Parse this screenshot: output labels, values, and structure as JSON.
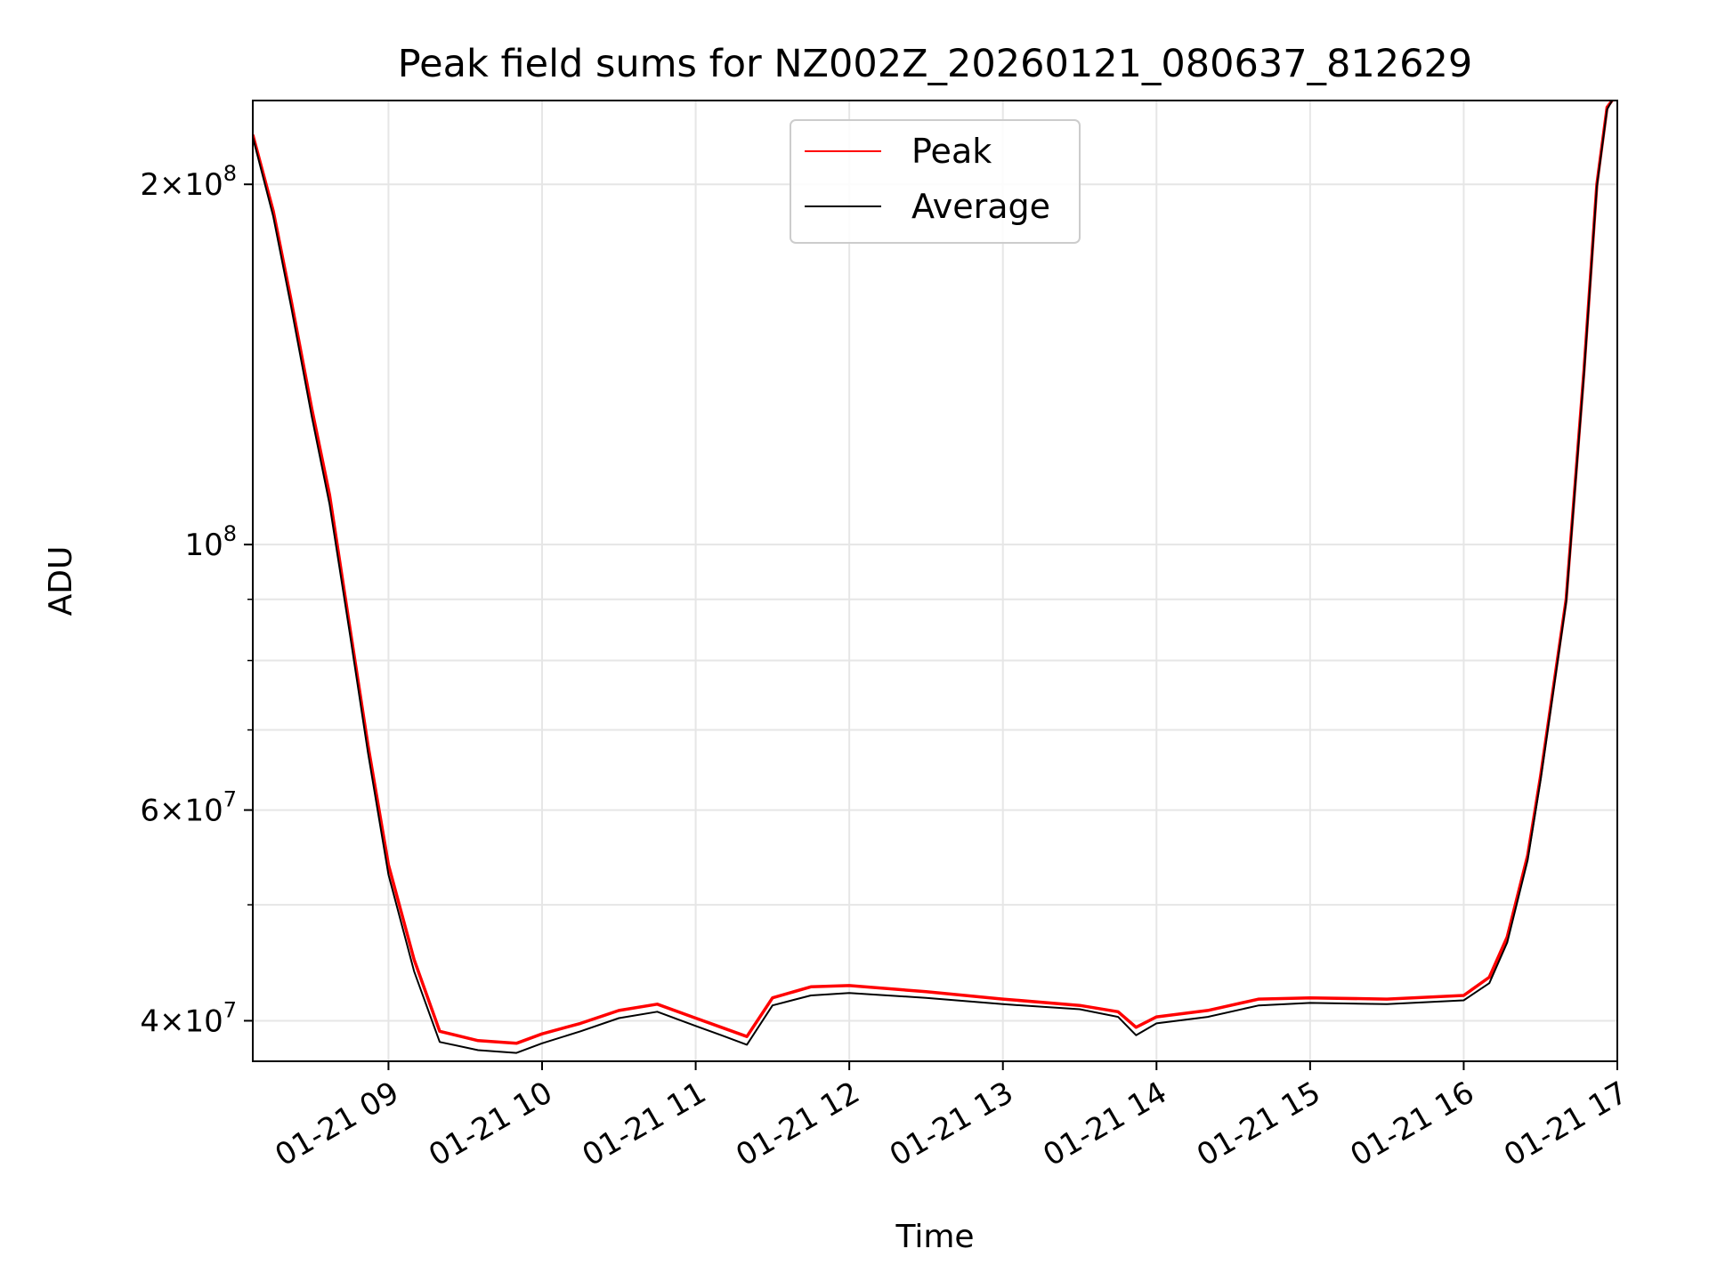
{
  "chart_data": {
    "type": "line",
    "title": "Peak field sums for NZ002Z_20260121_080637_812629",
    "xlabel": "Time",
    "ylabel": "ADU",
    "y_scale": "log",
    "ylim": [
      37000000,
      235000000
    ],
    "xlim": [
      "2026-01-21 08:07",
      "2026-01-21 17:00"
    ],
    "x_ticks": [
      "2026-01-21 09:00",
      "2026-01-21 10:00",
      "2026-01-21 11:00",
      "2026-01-21 12:00",
      "2026-01-21 13:00",
      "2026-01-21 14:00",
      "2026-01-21 15:00",
      "2026-01-21 16:00",
      "2026-01-21 17:00"
    ],
    "x_tick_labels": [
      "01-21 09",
      "01-21 10",
      "01-21 11",
      "01-21 12",
      "01-21 13",
      "01-21 14",
      "01-21 15",
      "01-21 16",
      "01-21 17"
    ],
    "y_ticks": [
      {
        "value": 200000000,
        "mantissa": "2",
        "exponent": "8"
      },
      {
        "value": 100000000,
        "mantissa": "",
        "exponent": "8"
      },
      {
        "value": 60000000,
        "mantissa": "6",
        "exponent": "7"
      },
      {
        "value": 40000000,
        "mantissa": "4",
        "exponent": "7"
      }
    ],
    "y_minor_ticks": [
      50000000,
      70000000,
      80000000,
      90000000
    ],
    "grid": true,
    "legend": {
      "placement": "top-center",
      "entries": [
        "Peak",
        "Average"
      ]
    },
    "x": [
      "2026-01-21 08:07",
      "2026-01-21 08:15",
      "2026-01-21 08:22",
      "2026-01-21 08:30",
      "2026-01-21 08:37",
      "2026-01-21 08:45",
      "2026-01-21 08:52",
      "2026-01-21 09:00",
      "2026-01-21 09:10",
      "2026-01-21 09:20",
      "2026-01-21 09:35",
      "2026-01-21 09:50",
      "2026-01-21 10:00",
      "2026-01-21 10:15",
      "2026-01-21 10:30",
      "2026-01-21 10:45",
      "2026-01-21 11:00",
      "2026-01-21 11:10",
      "2026-01-21 11:20",
      "2026-01-21 11:30",
      "2026-01-21 11:45",
      "2026-01-21 12:00",
      "2026-01-21 12:30",
      "2026-01-21 13:00",
      "2026-01-21 13:30",
      "2026-01-21 13:45",
      "2026-01-21 13:52",
      "2026-01-21 14:00",
      "2026-01-21 14:20",
      "2026-01-21 14:40",
      "2026-01-21 15:00",
      "2026-01-21 15:30",
      "2026-01-21 16:00",
      "2026-01-21 16:10",
      "2026-01-21 16:17",
      "2026-01-21 16:25",
      "2026-01-21 16:30",
      "2026-01-21 16:40",
      "2026-01-21 16:47",
      "2026-01-21 16:52",
      "2026-01-21 16:56",
      "2026-01-21 16:58"
    ],
    "series": [
      {
        "name": "Peak",
        "color": "#ff0000",
        "values": [
          220000000,
          190000000,
          160000000,
          130000000,
          110000000,
          85000000,
          68000000,
          54000000,
          45000000,
          39200000,
          38500000,
          38300000,
          39000000,
          39800000,
          40800000,
          41300000,
          40200000,
          39500000,
          38800000,
          41800000,
          42700000,
          42800000,
          42300000,
          41700000,
          41200000,
          40700000,
          39500000,
          40300000,
          40800000,
          41700000,
          41800000,
          41700000,
          42000000,
          43500000,
          47000000,
          55000000,
          64000000,
          90000000,
          140000000,
          200000000,
          232000000,
          235000000
        ]
      },
      {
        "name": "Average",
        "color": "#000000",
        "values": [
          219000000,
          188000000,
          158000000,
          128000000,
          108000000,
          84000000,
          67000000,
          53000000,
          44000000,
          38400000,
          37800000,
          37600000,
          38300000,
          39200000,
          40200000,
          40700000,
          39600000,
          38900000,
          38200000,
          41200000,
          42000000,
          42200000,
          41800000,
          41300000,
          40900000,
          40300000,
          38900000,
          39800000,
          40300000,
          41200000,
          41400000,
          41300000,
          41600000,
          43000000,
          46500000,
          54500000,
          63500000,
          89500000,
          139000000,
          199000000,
          231000000,
          235000000
        ]
      }
    ]
  }
}
